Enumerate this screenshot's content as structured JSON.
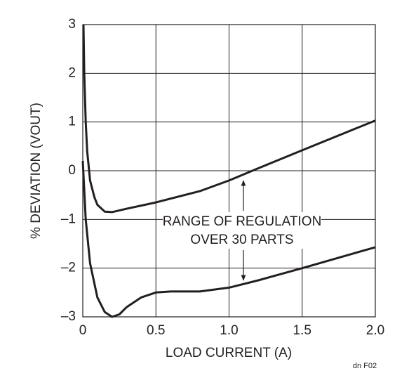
{
  "chart_data": {
    "type": "line",
    "ylabel": "% DEVIATION (VOUT)",
    "xlabel": "LOAD CURRENT (A)",
    "annotation": [
      "RANGE OF REGULATION",
      "OVER 30 PARTS"
    ],
    "footnote": "dn F02",
    "xlim": [
      0,
      2.0
    ],
    "ylim": [
      -3,
      3
    ],
    "xticks": [
      0,
      0.5,
      {
        "value": 1.0,
        "label": "1.0"
      },
      1.5,
      {
        "value": 2.0,
        "label": "2.0"
      }
    ],
    "yticks": [
      {
        "value": -3,
        "label": "–3"
      },
      {
        "value": -2,
        "label": "–2"
      },
      {
        "value": -1,
        "label": "–1"
      },
      0,
      1,
      2,
      3
    ],
    "grid": true,
    "series": [
      {
        "color": "#231f20",
        "x": [
          0.005,
          0.01,
          0.02,
          0.03,
          0.05,
          0.08,
          0.1,
          0.15,
          0.2,
          0.3,
          0.5,
          0.8,
          1.0,
          1.2,
          1.5,
          2.0
        ],
        "values": [
          3.0,
          2.0,
          1.0,
          0.4,
          -0.2,
          -0.55,
          -0.7,
          -0.84,
          -0.85,
          -0.78,
          -0.65,
          -0.42,
          -0.2,
          0.05,
          0.42,
          1.03
        ]
      },
      {
        "color": "#231f20",
        "x": [
          0.0,
          0.02,
          0.05,
          0.1,
          0.15,
          0.2,
          0.25,
          0.3,
          0.4,
          0.5,
          0.6,
          0.8,
          1.0,
          1.2,
          1.5,
          2.0
        ],
        "values": [
          0.2,
          -1.0,
          -1.9,
          -2.6,
          -2.9,
          -3.0,
          -2.95,
          -2.8,
          -2.6,
          -2.5,
          -2.48,
          -2.48,
          -2.4,
          -2.25,
          -2.0,
          -1.57
        ]
      }
    ]
  }
}
